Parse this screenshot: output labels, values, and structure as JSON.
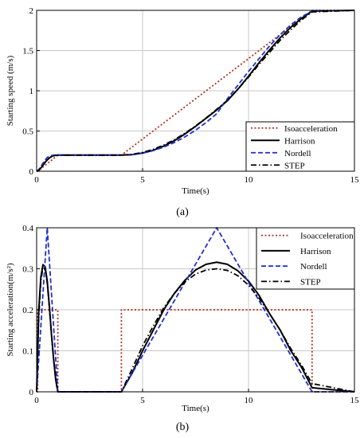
{
  "chart_data": [
    {
      "type": "line",
      "caption": "(a)",
      "xlabel": "Time(s)",
      "ylabel": "Starting speed (m/s)",
      "xlim": [
        0,
        15
      ],
      "ylim": [
        0,
        2
      ],
      "xticks": [
        0,
        5,
        10,
        15
      ],
      "yticks": [
        0,
        0.5,
        1,
        1.5,
        2
      ],
      "xtick_labels": [
        "0",
        "5",
        "10",
        "15"
      ],
      "ytick_labels": [
        "0",
        "0.5",
        "1",
        "1.5",
        "2"
      ],
      "grid": true,
      "legend_position": "bottom-right",
      "series": [
        {
          "name": "Isoacceleration",
          "color": "#b03020",
          "dash": "dotted",
          "x": [
            0,
            0.05,
            1,
            4,
            13,
            15
          ],
          "y": [
            0,
            0,
            0.2,
            0.2,
            2,
            2
          ]
        },
        {
          "name": "Harrison",
          "color": "#000000",
          "dash": "solid",
          "x": [
            0,
            0.1,
            0.2,
            0.3,
            0.4,
            0.5,
            0.6,
            0.7,
            0.8,
            0.9,
            1,
            4,
            4.5,
            5,
            5.5,
            6,
            6.5,
            7,
            7.5,
            8,
            8.5,
            9,
            9.5,
            10,
            10.5,
            11,
            11.5,
            12,
            12.5,
            13,
            15
          ],
          "y": [
            0,
            0.01,
            0.04,
            0.075,
            0.11,
            0.14,
            0.165,
            0.182,
            0.193,
            0.198,
            0.2,
            0.2,
            0.206,
            0.226,
            0.26,
            0.312,
            0.38,
            0.463,
            0.557,
            0.659,
            0.762,
            0.876,
            1.02,
            1.18,
            1.35,
            1.51,
            1.66,
            1.79,
            1.9,
            1.99,
            2
          ]
        },
        {
          "name": "Nordell",
          "color": "#1f2fd0",
          "dash": "dashed",
          "x": [
            0,
            0.1,
            0.2,
            0.3,
            0.4,
            0.5,
            0.6,
            0.7,
            0.8,
            0.9,
            1,
            4,
            4.5,
            5,
            5.5,
            6,
            6.5,
            7,
            7.5,
            8,
            8.5,
            9,
            9.5,
            10,
            10.5,
            11,
            11.5,
            12,
            12.5,
            13,
            15
          ],
          "y": [
            0,
            0.02,
            0.06,
            0.1,
            0.14,
            0.17,
            0.185,
            0.195,
            0.199,
            0.2,
            0.2,
            0.2,
            0.206,
            0.224,
            0.256,
            0.3,
            0.357,
            0.427,
            0.51,
            0.606,
            0.715,
            0.9,
            1.07,
            1.24,
            1.4,
            1.56,
            1.7,
            1.82,
            1.92,
            1.99,
            2
          ]
        },
        {
          "name": "STEP",
          "color": "#000000",
          "dash": "dashdot",
          "x": [
            0,
            0.1,
            0.2,
            0.3,
            0.4,
            0.5,
            0.6,
            0.7,
            0.8,
            0.9,
            1,
            4,
            4.5,
            5,
            5.5,
            6,
            6.5,
            7,
            7.5,
            8,
            8.5,
            9,
            9.5,
            10,
            10.5,
            11,
            11.5,
            12,
            12.5,
            13,
            15
          ],
          "y": [
            0,
            0.012,
            0.042,
            0.078,
            0.112,
            0.142,
            0.166,
            0.183,
            0.194,
            0.198,
            0.2,
            0.2,
            0.21,
            0.234,
            0.272,
            0.325,
            0.392,
            0.472,
            0.563,
            0.663,
            0.77,
            0.88,
            1.02,
            1.17,
            1.33,
            1.48,
            1.63,
            1.76,
            1.88,
            1.98,
            2
          ]
        }
      ]
    },
    {
      "type": "line",
      "caption": "(b)",
      "xlabel": "Time(s)",
      "ylabel": "Starting acceleration(m/s²)",
      "xlim": [
        0,
        15
      ],
      "ylim": [
        0,
        0.4
      ],
      "xticks": [
        0,
        5,
        10,
        15
      ],
      "yticks": [
        0,
        0.1,
        0.2,
        0.3,
        0.4
      ],
      "xtick_labels": [
        "0",
        "5",
        "10",
        "15"
      ],
      "ytick_labels": [
        "0",
        "0.1",
        "0.2",
        "0.3",
        "0.4"
      ],
      "grid": true,
      "legend_position": "top-right",
      "series": [
        {
          "name": "Isoacceleration",
          "color": "#b03020",
          "dash": "dotted",
          "x": [
            0,
            0.05,
            0.05,
            1,
            1,
            4,
            4,
            13,
            13,
            15
          ],
          "y": [
            0,
            0,
            0.2,
            0.2,
            0,
            0,
            0.2,
            0.2,
            0,
            0
          ]
        },
        {
          "name": "Harrison",
          "color": "#000000",
          "dash": "solid",
          "x": [
            0,
            0.1,
            0.2,
            0.3,
            0.4,
            0.5,
            0.6,
            0.7,
            0.8,
            0.9,
            1,
            4,
            4.5,
            5,
            5.5,
            6,
            6.5,
            7,
            7.5,
            8,
            8.5,
            9,
            9.5,
            10,
            10.5,
            11,
            11.5,
            12,
            12.5,
            13,
            15
          ],
          "y": [
            0,
            0.2,
            0.28,
            0.31,
            0.305,
            0.27,
            0.21,
            0.14,
            0.08,
            0.03,
            0,
            0,
            0.045,
            0.1,
            0.15,
            0.2,
            0.24,
            0.272,
            0.297,
            0.311,
            0.316,
            0.311,
            0.295,
            0.27,
            0.235,
            0.19,
            0.15,
            0.1,
            0.06,
            0.01,
            0
          ]
        },
        {
          "name": "Nordell",
          "color": "#1f2fd0",
          "dash": "dashed",
          "x": [
            0,
            0.5,
            1,
            4,
            8.5,
            13,
            15
          ],
          "y": [
            0,
            0.4,
            0,
            0,
            0.4,
            0,
            0
          ]
        },
        {
          "name": "STEP",
          "color": "#000000",
          "dash": "dashdot",
          "x": [
            0,
            0.1,
            0.2,
            0.3,
            0.4,
            0.5,
            0.6,
            0.7,
            0.8,
            0.9,
            1,
            4,
            4.5,
            5,
            5.5,
            6,
            6.5,
            7,
            7.5,
            8,
            8.5,
            9,
            9.5,
            10,
            10.5,
            11,
            11.5,
            12,
            12.5,
            13,
            15
          ],
          "y": [
            0,
            0.18,
            0.27,
            0.305,
            0.3,
            0.265,
            0.205,
            0.14,
            0.08,
            0.03,
            0,
            0,
            0.055,
            0.112,
            0.16,
            0.205,
            0.24,
            0.268,
            0.287,
            0.297,
            0.3,
            0.296,
            0.283,
            0.26,
            0.228,
            0.19,
            0.15,
            0.105,
            0.065,
            0.02,
            0
          ]
        }
      ]
    }
  ]
}
